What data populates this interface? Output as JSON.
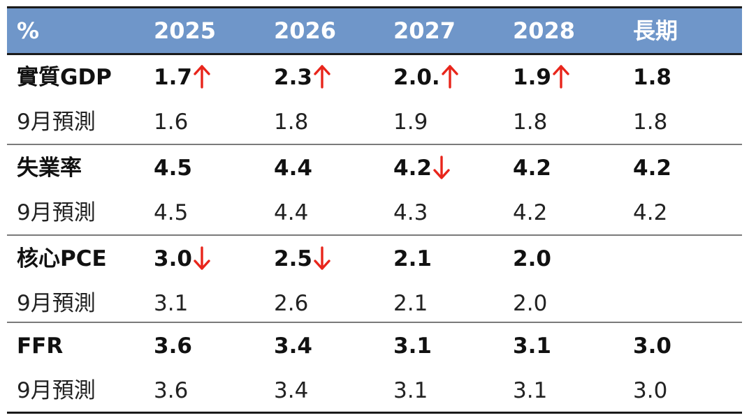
{
  "header": {
    "unit": "%",
    "columns": [
      "2025",
      "2026",
      "2027",
      "2028",
      "長期"
    ]
  },
  "colors": {
    "header_background": "#6f96c9",
    "header_text": "#ffffff",
    "arrow": "#e8251b"
  },
  "rows": [
    {
      "label": "實質GDP",
      "values": [
        "1.7",
        "2.3",
        "2.0.",
        "1.9",
        "1.8"
      ],
      "arrows": [
        "up-arrow-icon",
        "up-arrow-icon",
        "up-arrow-icon",
        "up-arrow-icon",
        ""
      ],
      "prev_label": "9月預測",
      "prev_values": [
        "1.6",
        "1.8",
        "1.9",
        "1.8",
        "1.8"
      ]
    },
    {
      "label": "失業率",
      "values": [
        "4.5",
        "4.4",
        "4.2",
        "4.2",
        "4.2"
      ],
      "arrows": [
        "",
        "",
        "down-arrow-icon",
        "",
        ""
      ],
      "prev_label": "9月預測",
      "prev_values": [
        "4.5",
        "4.4",
        "4.3",
        "4.2",
        "4.2"
      ]
    },
    {
      "label": "核心PCE",
      "values": [
        "3.0",
        "2.5",
        "2.1",
        "2.0",
        ""
      ],
      "arrows": [
        "down-arrow-icon",
        "down-arrow-icon",
        "",
        "",
        ""
      ],
      "prev_label": "9月預測",
      "prev_values": [
        "3.1",
        "2.6",
        "2.1",
        "2.0",
        ""
      ]
    },
    {
      "label": "FFR",
      "values": [
        "3.6",
        "3.4",
        "3.1",
        "3.1",
        "3.0"
      ],
      "arrows": [
        "",
        "",
        "",
        "",
        ""
      ],
      "prev_label": "9月預測",
      "prev_values": [
        "3.6",
        "3.4",
        "3.1",
        "3.1",
        "3.0"
      ]
    }
  ]
}
